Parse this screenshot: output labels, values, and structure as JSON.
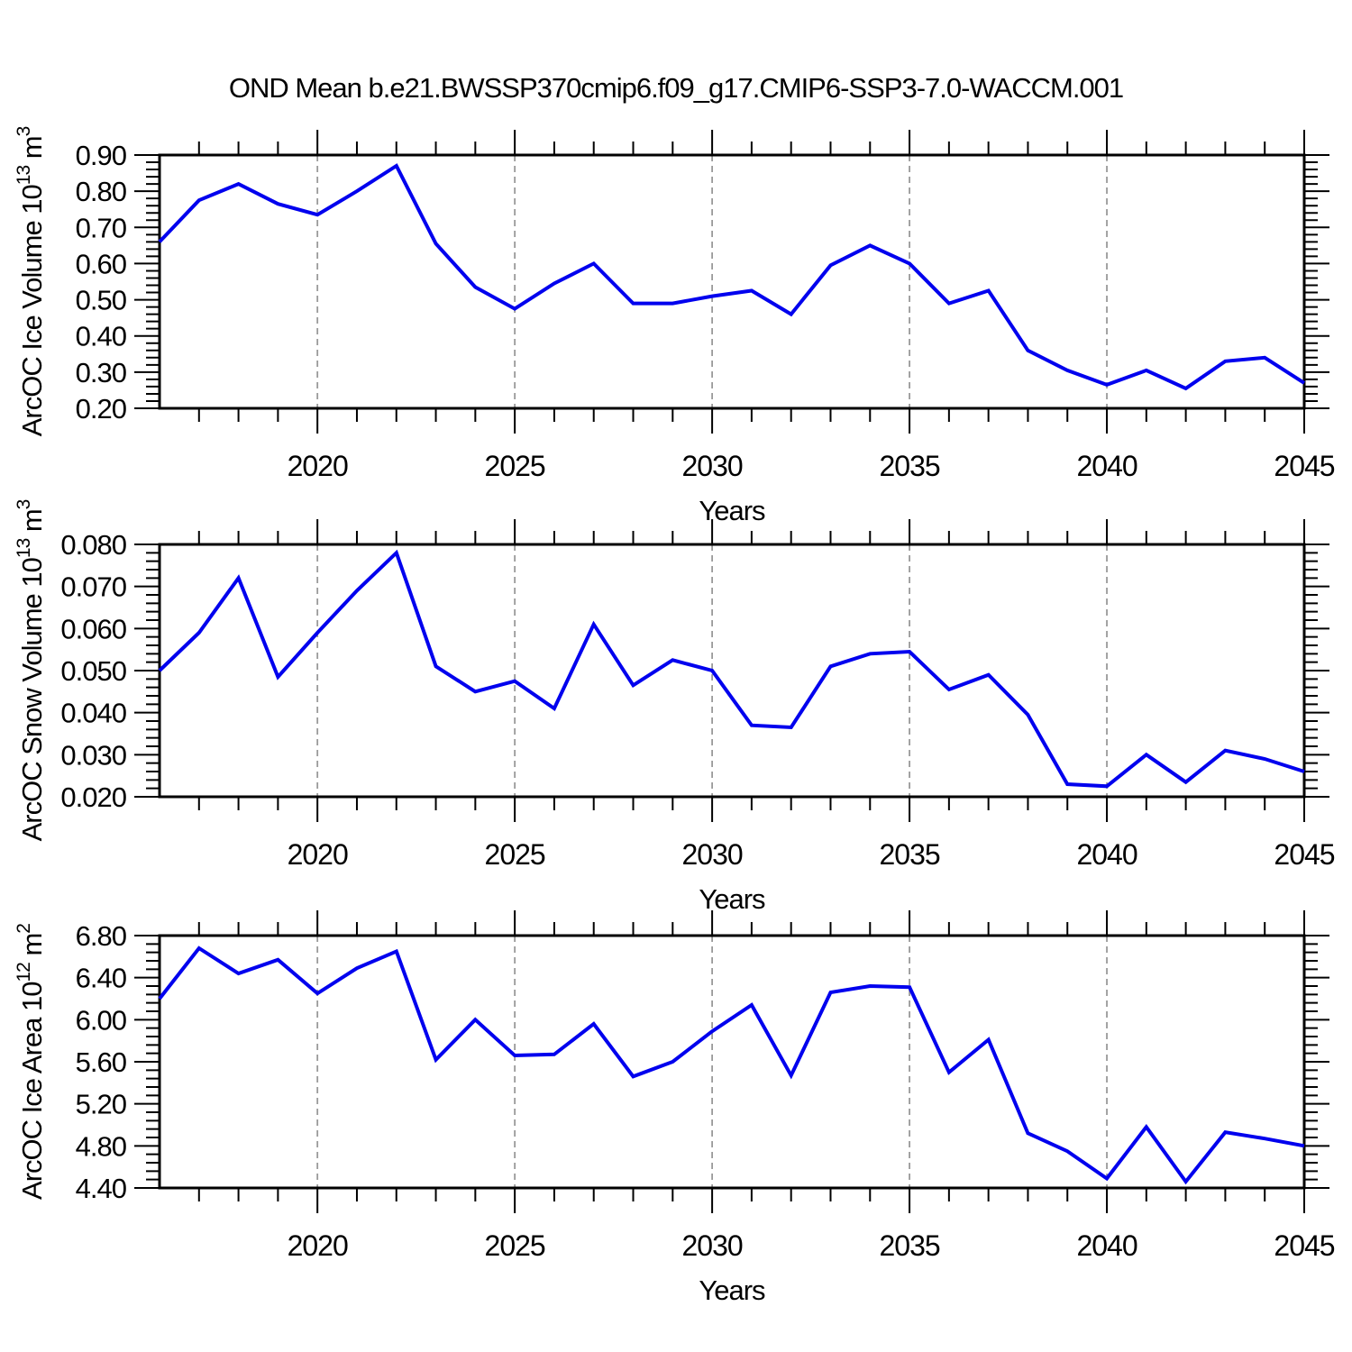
{
  "title": "OND Mean b.e21.BWSSP370cmip6.f09_g17.CMIP6-SSP3-7.0-WACCM.001",
  "colors": {
    "line": "#0000EE",
    "grid": "#999999",
    "axis": "#000000",
    "text": "#000000",
    "background": "#FFFFFF"
  },
  "x_axis": {
    "label": "Years",
    "years": [
      2016,
      2017,
      2018,
      2019,
      2020,
      2021,
      2022,
      2023,
      2024,
      2025,
      2026,
      2027,
      2028,
      2029,
      2030,
      2031,
      2032,
      2033,
      2034,
      2035,
      2036,
      2037,
      2038,
      2039,
      2040,
      2041,
      2042,
      2043,
      2044,
      2045
    ],
    "major_ticks": [
      2020,
      2025,
      2030,
      2035,
      2040,
      2045
    ],
    "tick_labels": [
      "2020",
      "2025",
      "2030",
      "2035",
      "2040",
      "2045"
    ],
    "gridlines": [
      2020,
      2025,
      2030,
      2035,
      2040
    ]
  },
  "chart_data": [
    {
      "type": "line",
      "name": "arcoc-ice-volume",
      "ylabel_text": "ArcOC Ice Volume 10^13 m^3",
      "ylabel_parts": [
        {
          "t": "ArcOC Ice Volume 10",
          "sup": false
        },
        {
          "t": "13",
          "sup": true
        },
        {
          "t": " m",
          "sup": false
        },
        {
          "t": "3",
          "sup": true
        }
      ],
      "ylim": [
        0.2,
        0.9
      ],
      "ytick_values": [
        0.2,
        0.3,
        0.4,
        0.5,
        0.6,
        0.7,
        0.8,
        0.9
      ],
      "ytick_labels": [
        "0.20",
        "0.30",
        "0.40",
        "0.50",
        "0.60",
        "0.70",
        "0.80",
        "0.90"
      ],
      "y_minor_step": 0.02,
      "xlabel": "Years",
      "values": [
        0.66,
        0.775,
        0.82,
        0.765,
        0.735,
        0.8,
        0.87,
        0.655,
        0.535,
        0.475,
        0.545,
        0.6,
        0.49,
        0.49,
        0.51,
        0.525,
        0.46,
        0.595,
        0.65,
        0.6,
        0.49,
        0.525,
        0.36,
        0.305,
        0.265,
        0.305,
        0.255,
        0.33,
        0.34,
        0.27
      ]
    },
    {
      "type": "line",
      "name": "arcoc-snow-volume",
      "ylabel_text": "ArcOC Snow Volume 10^13 m^3",
      "ylabel_parts": [
        {
          "t": "ArcOC Snow Volume 10",
          "sup": false
        },
        {
          "t": "13",
          "sup": true
        },
        {
          "t": " m",
          "sup": false
        },
        {
          "t": "3",
          "sup": true
        }
      ],
      "ylim": [
        0.02,
        0.08
      ],
      "ytick_values": [
        0.02,
        0.03,
        0.04,
        0.05,
        0.06,
        0.07,
        0.08
      ],
      "ytick_labels": [
        "0.020",
        "0.030",
        "0.040",
        "0.050",
        "0.060",
        "0.070",
        "0.080"
      ],
      "y_minor_step": 0.002,
      "xlabel": "Years",
      "values": [
        0.05,
        0.059,
        0.072,
        0.0485,
        0.059,
        0.069,
        0.078,
        0.051,
        0.045,
        0.0475,
        0.041,
        0.061,
        0.0465,
        0.0525,
        0.05,
        0.037,
        0.0365,
        0.051,
        0.054,
        0.0545,
        0.0455,
        0.049,
        0.0395,
        0.023,
        0.0225,
        0.03,
        0.0235,
        0.031,
        0.029,
        0.026
      ]
    },
    {
      "type": "line",
      "name": "arcoc-ice-area",
      "ylabel_text": "ArcOC Ice Area 10^12 m^2",
      "ylabel_parts": [
        {
          "t": "ArcOC Ice Area 10",
          "sup": false
        },
        {
          "t": "12",
          "sup": true
        },
        {
          "t": " m",
          "sup": false
        },
        {
          "t": "2",
          "sup": true
        }
      ],
      "ylim": [
        4.4,
        6.8
      ],
      "ytick_values": [
        4.4,
        4.8,
        5.2,
        5.6,
        6.0,
        6.4,
        6.8
      ],
      "ytick_labels": [
        "4.40",
        "4.80",
        "5.20",
        "5.60",
        "6.00",
        "6.40",
        "6.80"
      ],
      "y_minor_step": 0.08,
      "xlabel": "Years",
      "values": [
        6.2,
        6.68,
        6.44,
        6.57,
        6.25,
        6.49,
        6.65,
        5.62,
        6.0,
        5.66,
        5.67,
        5.96,
        5.46,
        5.6,
        5.89,
        6.14,
        5.47,
        6.26,
        6.32,
        6.31,
        5.5,
        5.81,
        4.92,
        4.75,
        4.49,
        4.98,
        4.46,
        4.93,
        4.87,
        4.8
      ]
    }
  ]
}
